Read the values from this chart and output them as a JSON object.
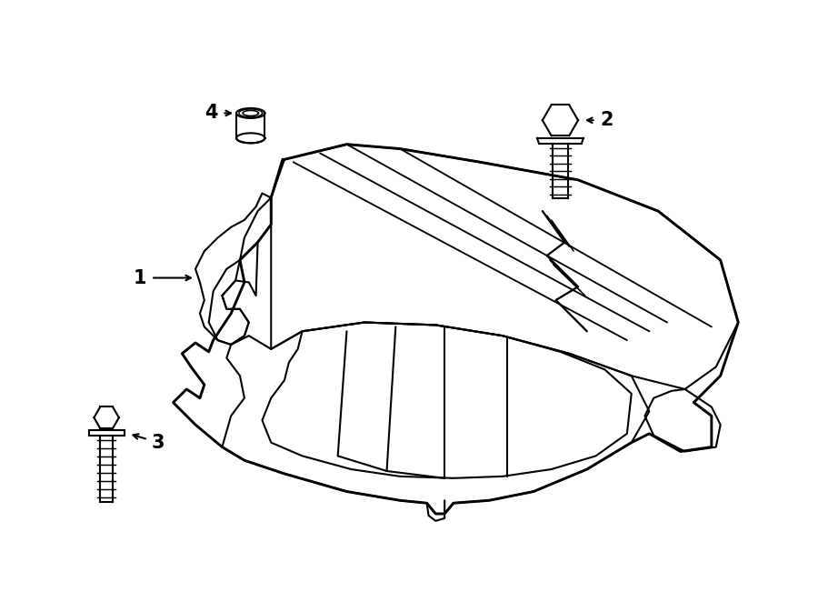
{
  "bg_color": "#ffffff",
  "line_color": "#000000",
  "line_width": 1.5,
  "label_fontsize": 15,
  "label_fontweight": "bold"
}
